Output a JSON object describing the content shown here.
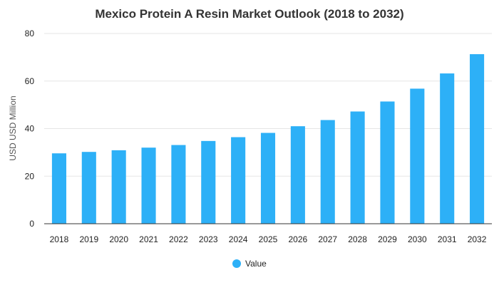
{
  "chart_data": {
    "type": "bar",
    "title": "Mexico Protein A Resin Market Outlook (2018 to 2032)",
    "ylabel": "USD USD Million",
    "xlabel": "",
    "categories": [
      "2018",
      "2019",
      "2020",
      "2021",
      "2022",
      "2023",
      "2024",
      "2025",
      "2026",
      "2027",
      "2028",
      "2029",
      "2030",
      "2031",
      "2032"
    ],
    "series": [
      {
        "name": "Value",
        "values": [
          29.6,
          30.2,
          30.9,
          32.0,
          33.1,
          34.8,
          36.4,
          38.2,
          41.0,
          43.6,
          47.2,
          51.4,
          56.8,
          63.2,
          71.3
        ],
        "color": "#2db0f7"
      }
    ],
    "ylim": [
      0,
      80
    ],
    "yticks": [
      0,
      20,
      40,
      60,
      80
    ],
    "grid": true,
    "legend_position": "bottom-center"
  }
}
